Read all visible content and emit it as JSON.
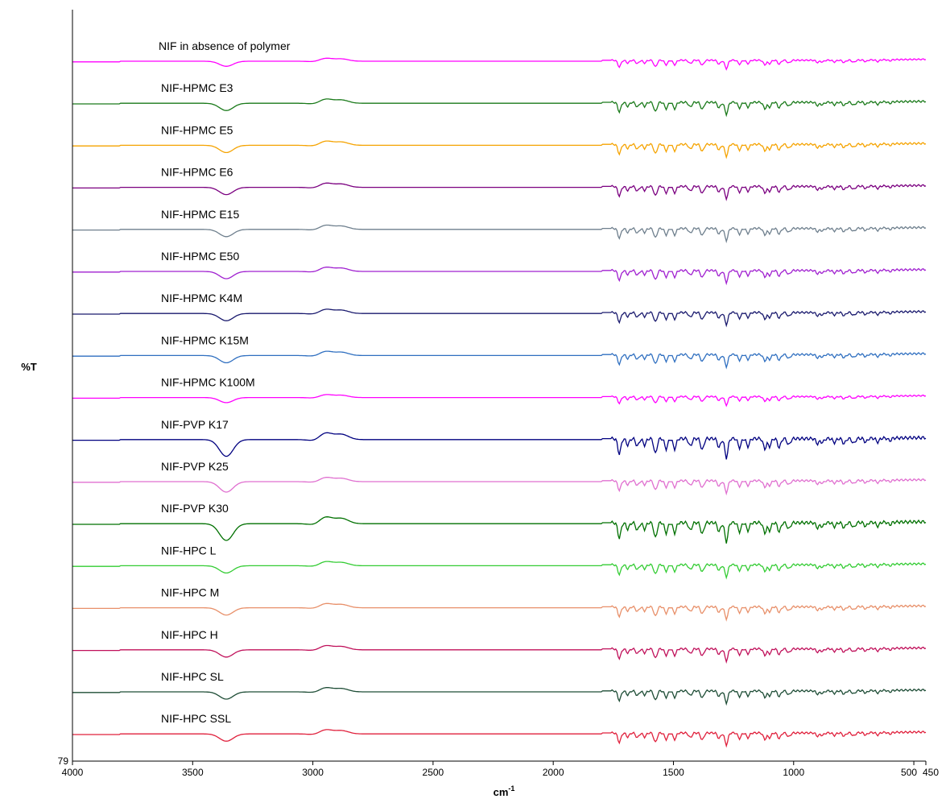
{
  "chart_data": {
    "type": "line",
    "xlabel": "cm",
    "xlabel_sup": "-1",
    "ylabel": "%T",
    "x_reversed": true,
    "xlim": [
      4000,
      450
    ],
    "x_ticks": [
      {
        "value": 4000,
        "label": "4000"
      },
      {
        "value": 3500,
        "label": "3500"
      },
      {
        "value": 3000,
        "label": "3000"
      },
      {
        "value": 2500,
        "label": "2500"
      },
      {
        "value": 2000,
        "label": "2000"
      },
      {
        "value": 1500,
        "label": "1500"
      },
      {
        "value": 1000,
        "label": "1000"
      },
      {
        "value": 500,
        "label": "500"
      },
      {
        "value": 450,
        "label": "450"
      }
    ],
    "y_tick_label": "79",
    "grid": false,
    "legend": "none (series labelled directly above each trace)",
    "stacked_offset_traces": true,
    "series": [
      {
        "name": "NIF in absence of polymer",
        "color": "#ff00ff",
        "features": "weak",
        "pvp_like": false
      },
      {
        "name": "NIF-HPMC E3",
        "color": "#1a7a1a",
        "features": "medium",
        "pvp_like": false
      },
      {
        "name": "NIF-HPMC E5",
        "color": "#f5a300",
        "features": "medium",
        "pvp_like": false
      },
      {
        "name": "NIF-HPMC E6",
        "color": "#7b0080",
        "features": "medium",
        "pvp_like": false
      },
      {
        "name": "NIF-HPMC E15",
        "color": "#6e7f8d",
        "features": "medium",
        "pvp_like": false
      },
      {
        "name": "NIF-HPMC E50",
        "color": "#a020d0",
        "features": "medium",
        "pvp_like": false
      },
      {
        "name": "NIF-HPMC K4M",
        "color": "#1a1a6e",
        "features": "medium",
        "pvp_like": false
      },
      {
        "name": "NIF-HPMC K15M",
        "color": "#2f6fc0",
        "features": "medium",
        "pvp_like": false
      },
      {
        "name": "NIF-HPMC K100M",
        "color": "#ff00ff",
        "features": "weak",
        "pvp_like": false
      },
      {
        "name": "NIF-PVP K17",
        "color": "#000080",
        "features": "strong",
        "pvp_like": true
      },
      {
        "name": "NIF-PVP K25",
        "color": "#e070d0",
        "features": "medium",
        "pvp_like": true
      },
      {
        "name": "NIF-PVP K30",
        "color": "#007000",
        "features": "strong",
        "pvp_like": true
      },
      {
        "name": "NIF-HPC L",
        "color": "#33cc33",
        "features": "medium",
        "pvp_like": false
      },
      {
        "name": "NIF-HPC M",
        "color": "#e8906a",
        "features": "medium",
        "pvp_like": false
      },
      {
        "name": "NIF-HPC H",
        "color": "#c0105a",
        "features": "medium",
        "pvp_like": false
      },
      {
        "name": "NIF-HPC SL",
        "color": "#1e4d36",
        "features": "medium",
        "pvp_like": false
      },
      {
        "name": "NIF-HPC SSL",
        "color": "#e0203c",
        "features": "medium",
        "pvp_like": false
      }
    ],
    "peaks_cm": [
      3360,
      2950,
      2880,
      2980,
      1725,
      1690,
      1650,
      1620,
      1575,
      1530,
      1495,
      1430,
      1380,
      1310,
      1280,
      1225,
      1190,
      1120,
      1100,
      1060,
      1020,
      900,
      880,
      830,
      790,
      750,
      700,
      650,
      600
    ]
  }
}
